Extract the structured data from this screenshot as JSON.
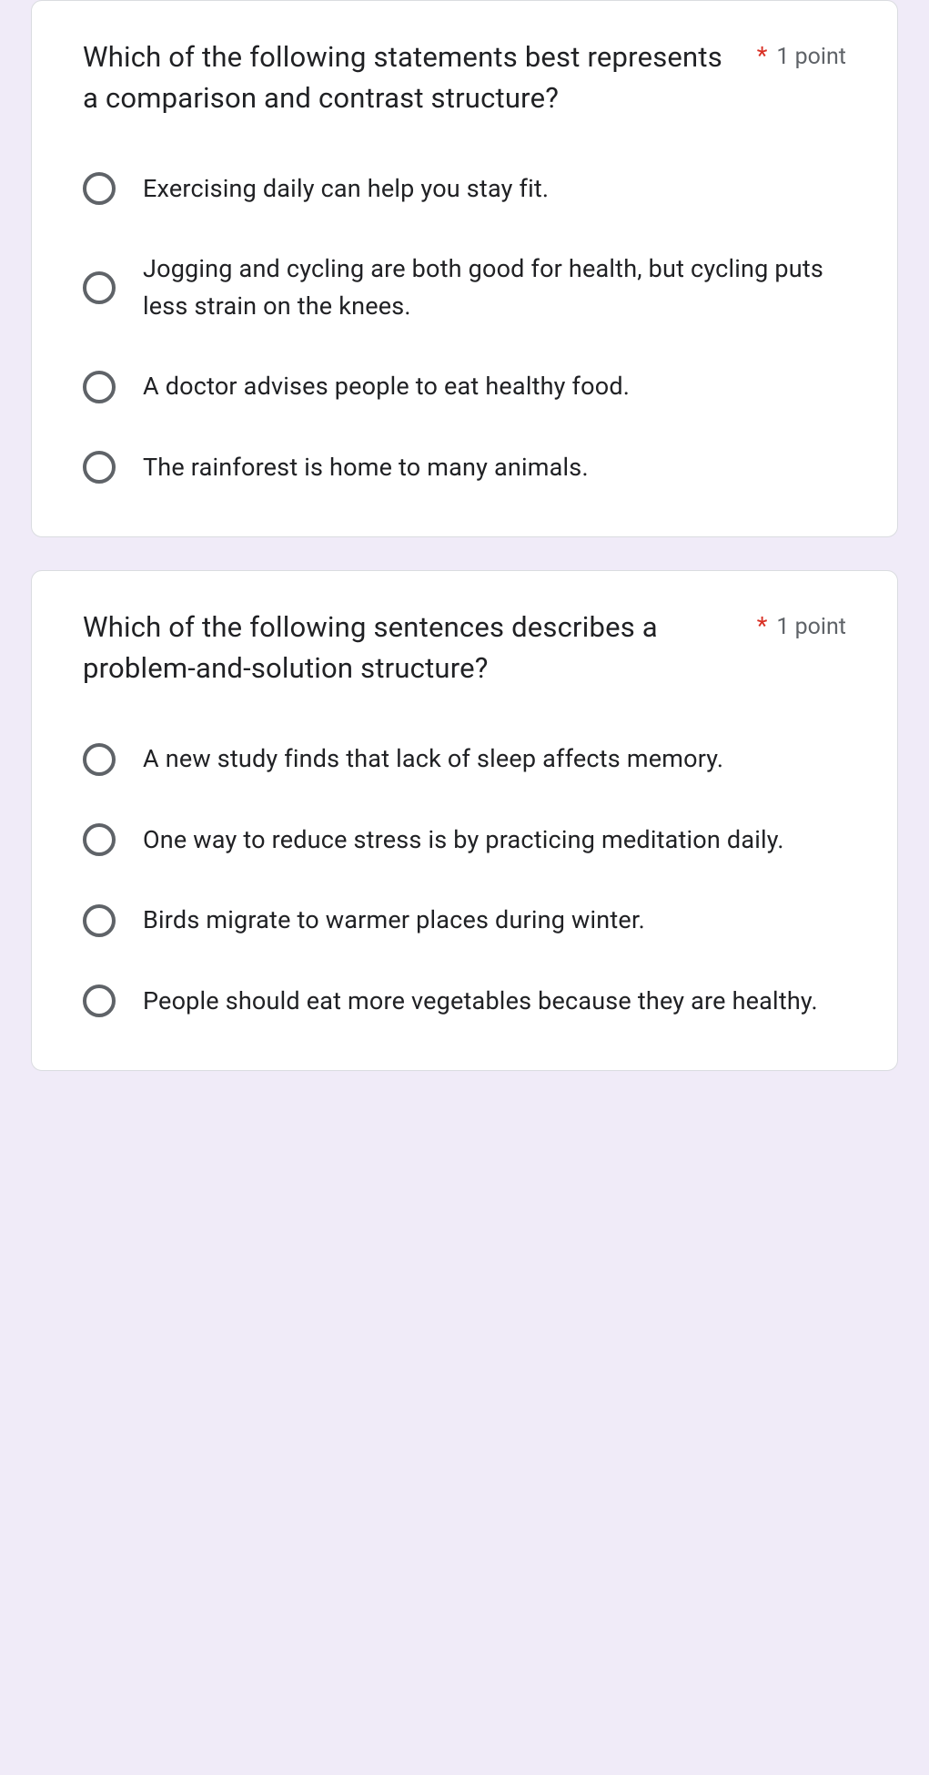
{
  "colors": {
    "page_bg": "#f0ebf8",
    "card_bg": "#ffffff",
    "card_border": "#dadce0",
    "text_primary": "#202124",
    "text_secondary": "#5f6368",
    "required": "#d93025"
  },
  "questions": [
    {
      "prompt": "Which of the following statements best represents a comparison and contrast structure?",
      "required_mark": "*",
      "points": "1 point",
      "options": [
        "Exercising daily can help you stay fit.",
        "Jogging and cycling are both good for health, but cycling puts less strain on the knees.",
        "A doctor advises people to eat healthy food.",
        "The rainforest is home to many animals."
      ]
    },
    {
      "prompt": "Which of the following sentences describes a problem-and-solution structure?",
      "required_mark": "*",
      "points": "1 point",
      "options": [
        "A new study finds that lack of sleep affects memory.",
        "One way to reduce stress is by practicing meditation daily.",
        "Birds migrate to warmer places during winter.",
        "People should eat more vegetables because they are healthy."
      ]
    }
  ]
}
